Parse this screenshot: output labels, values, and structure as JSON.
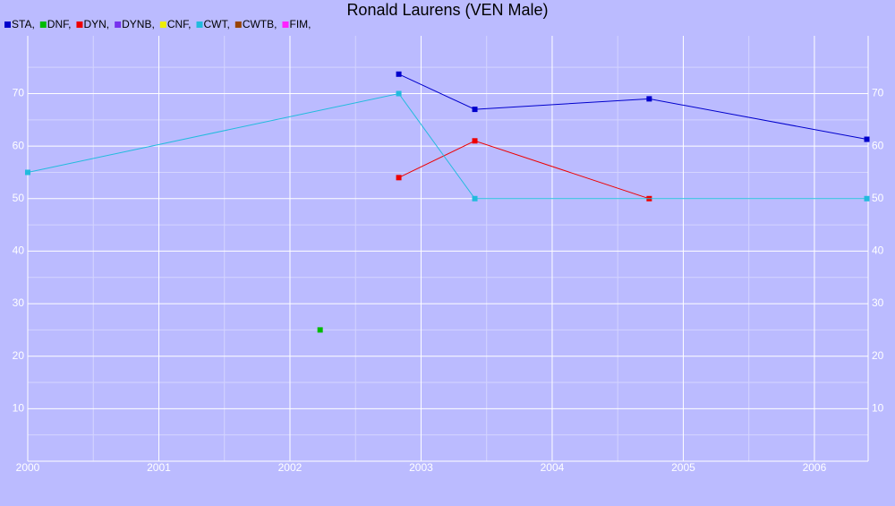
{
  "chart_data": {
    "type": "line",
    "title": "Ronald Laurens (VEN Male)",
    "xlim": [
      2000,
      2006.41
    ],
    "xticks": [
      2000,
      2001,
      2002,
      2003,
      2004,
      2005,
      2006
    ],
    "ylim": [
      0,
      81
    ],
    "yticks": [
      10,
      20,
      30,
      40,
      50,
      60,
      70
    ],
    "grid": true,
    "series": [
      {
        "name": "STA,",
        "color": "#0000cc",
        "x": [
          2002.83,
          2003.41,
          2004.74,
          2006.4
        ],
        "values": [
          73.7,
          67,
          69,
          61.3
        ]
      },
      {
        "name": "DNF,",
        "color": "#00bb00",
        "x": [
          2002.23
        ],
        "values": [
          25
        ]
      },
      {
        "name": "DYN,",
        "color": "#ee0000",
        "x": [
          2002.83,
          2003.41,
          2004.74
        ],
        "values": [
          54,
          61,
          50
        ]
      },
      {
        "name": "DYNB,",
        "color": "#7733ee",
        "x": [],
        "values": []
      },
      {
        "name": "CNF,",
        "color": "#eeee00",
        "x": [],
        "values": []
      },
      {
        "name": "CWT,",
        "color": "#22bbdd",
        "x": [
          2000,
          2002.83,
          2003.41,
          2006.4
        ],
        "values": [
          55,
          70,
          50,
          50
        ]
      },
      {
        "name": "CWTB,",
        "color": "#994400",
        "x": [],
        "values": []
      },
      {
        "name": "FIM,",
        "color": "#ff22ff",
        "x": [],
        "values": []
      }
    ]
  }
}
